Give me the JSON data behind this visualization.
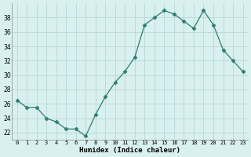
{
  "x": [
    0,
    1,
    2,
    3,
    4,
    5,
    6,
    7,
    8,
    9,
    10,
    11,
    12,
    13,
    14,
    15,
    16,
    17,
    18,
    19,
    20,
    21,
    22,
    23
  ],
  "y": [
    26.5,
    25.5,
    25.5,
    24.0,
    23.5,
    22.5,
    22.5,
    21.5,
    24.5,
    27.0,
    29.0,
    30.5,
    32.5,
    37.0,
    38.0,
    39.0,
    38.5,
    37.5,
    36.5,
    39.0,
    37.0,
    33.5,
    32.0,
    30.5
  ],
  "line_color": "#2e7d6e",
  "marker": "D",
  "marker_size": 2.5,
  "bg_color": "#d8f0ef",
  "grid_color": "#b8d8d6",
  "xlabel": "Humidex (Indice chaleur)",
  "ylabel_ticks": [
    22,
    24,
    26,
    28,
    30,
    32,
    34,
    36,
    38
  ],
  "xlim": [
    -0.5,
    23.5
  ],
  "ylim": [
    21.0,
    40.0
  ],
  "xtick_labels": [
    "0",
    "1",
    "2",
    "3",
    "4",
    "5",
    "6",
    "7",
    "8",
    "9",
    "10",
    "11",
    "12",
    "13",
    "14",
    "15",
    "16",
    "17",
    "18",
    "19",
    "20",
    "21",
    "22",
    "23"
  ]
}
